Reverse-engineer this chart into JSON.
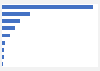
{
  "values": [
    10900,
    3300,
    2200,
    1500,
    900,
    380,
    290,
    230,
    170
  ],
  "bar_color": "#4472c4",
  "background_color": "#f2f2f2",
  "plot_background": "#ffffff",
  "grid_color": "#d9d9d9",
  "bar_height": 0.55,
  "figsize": [
    1.0,
    0.71
  ],
  "dpi": 100
}
